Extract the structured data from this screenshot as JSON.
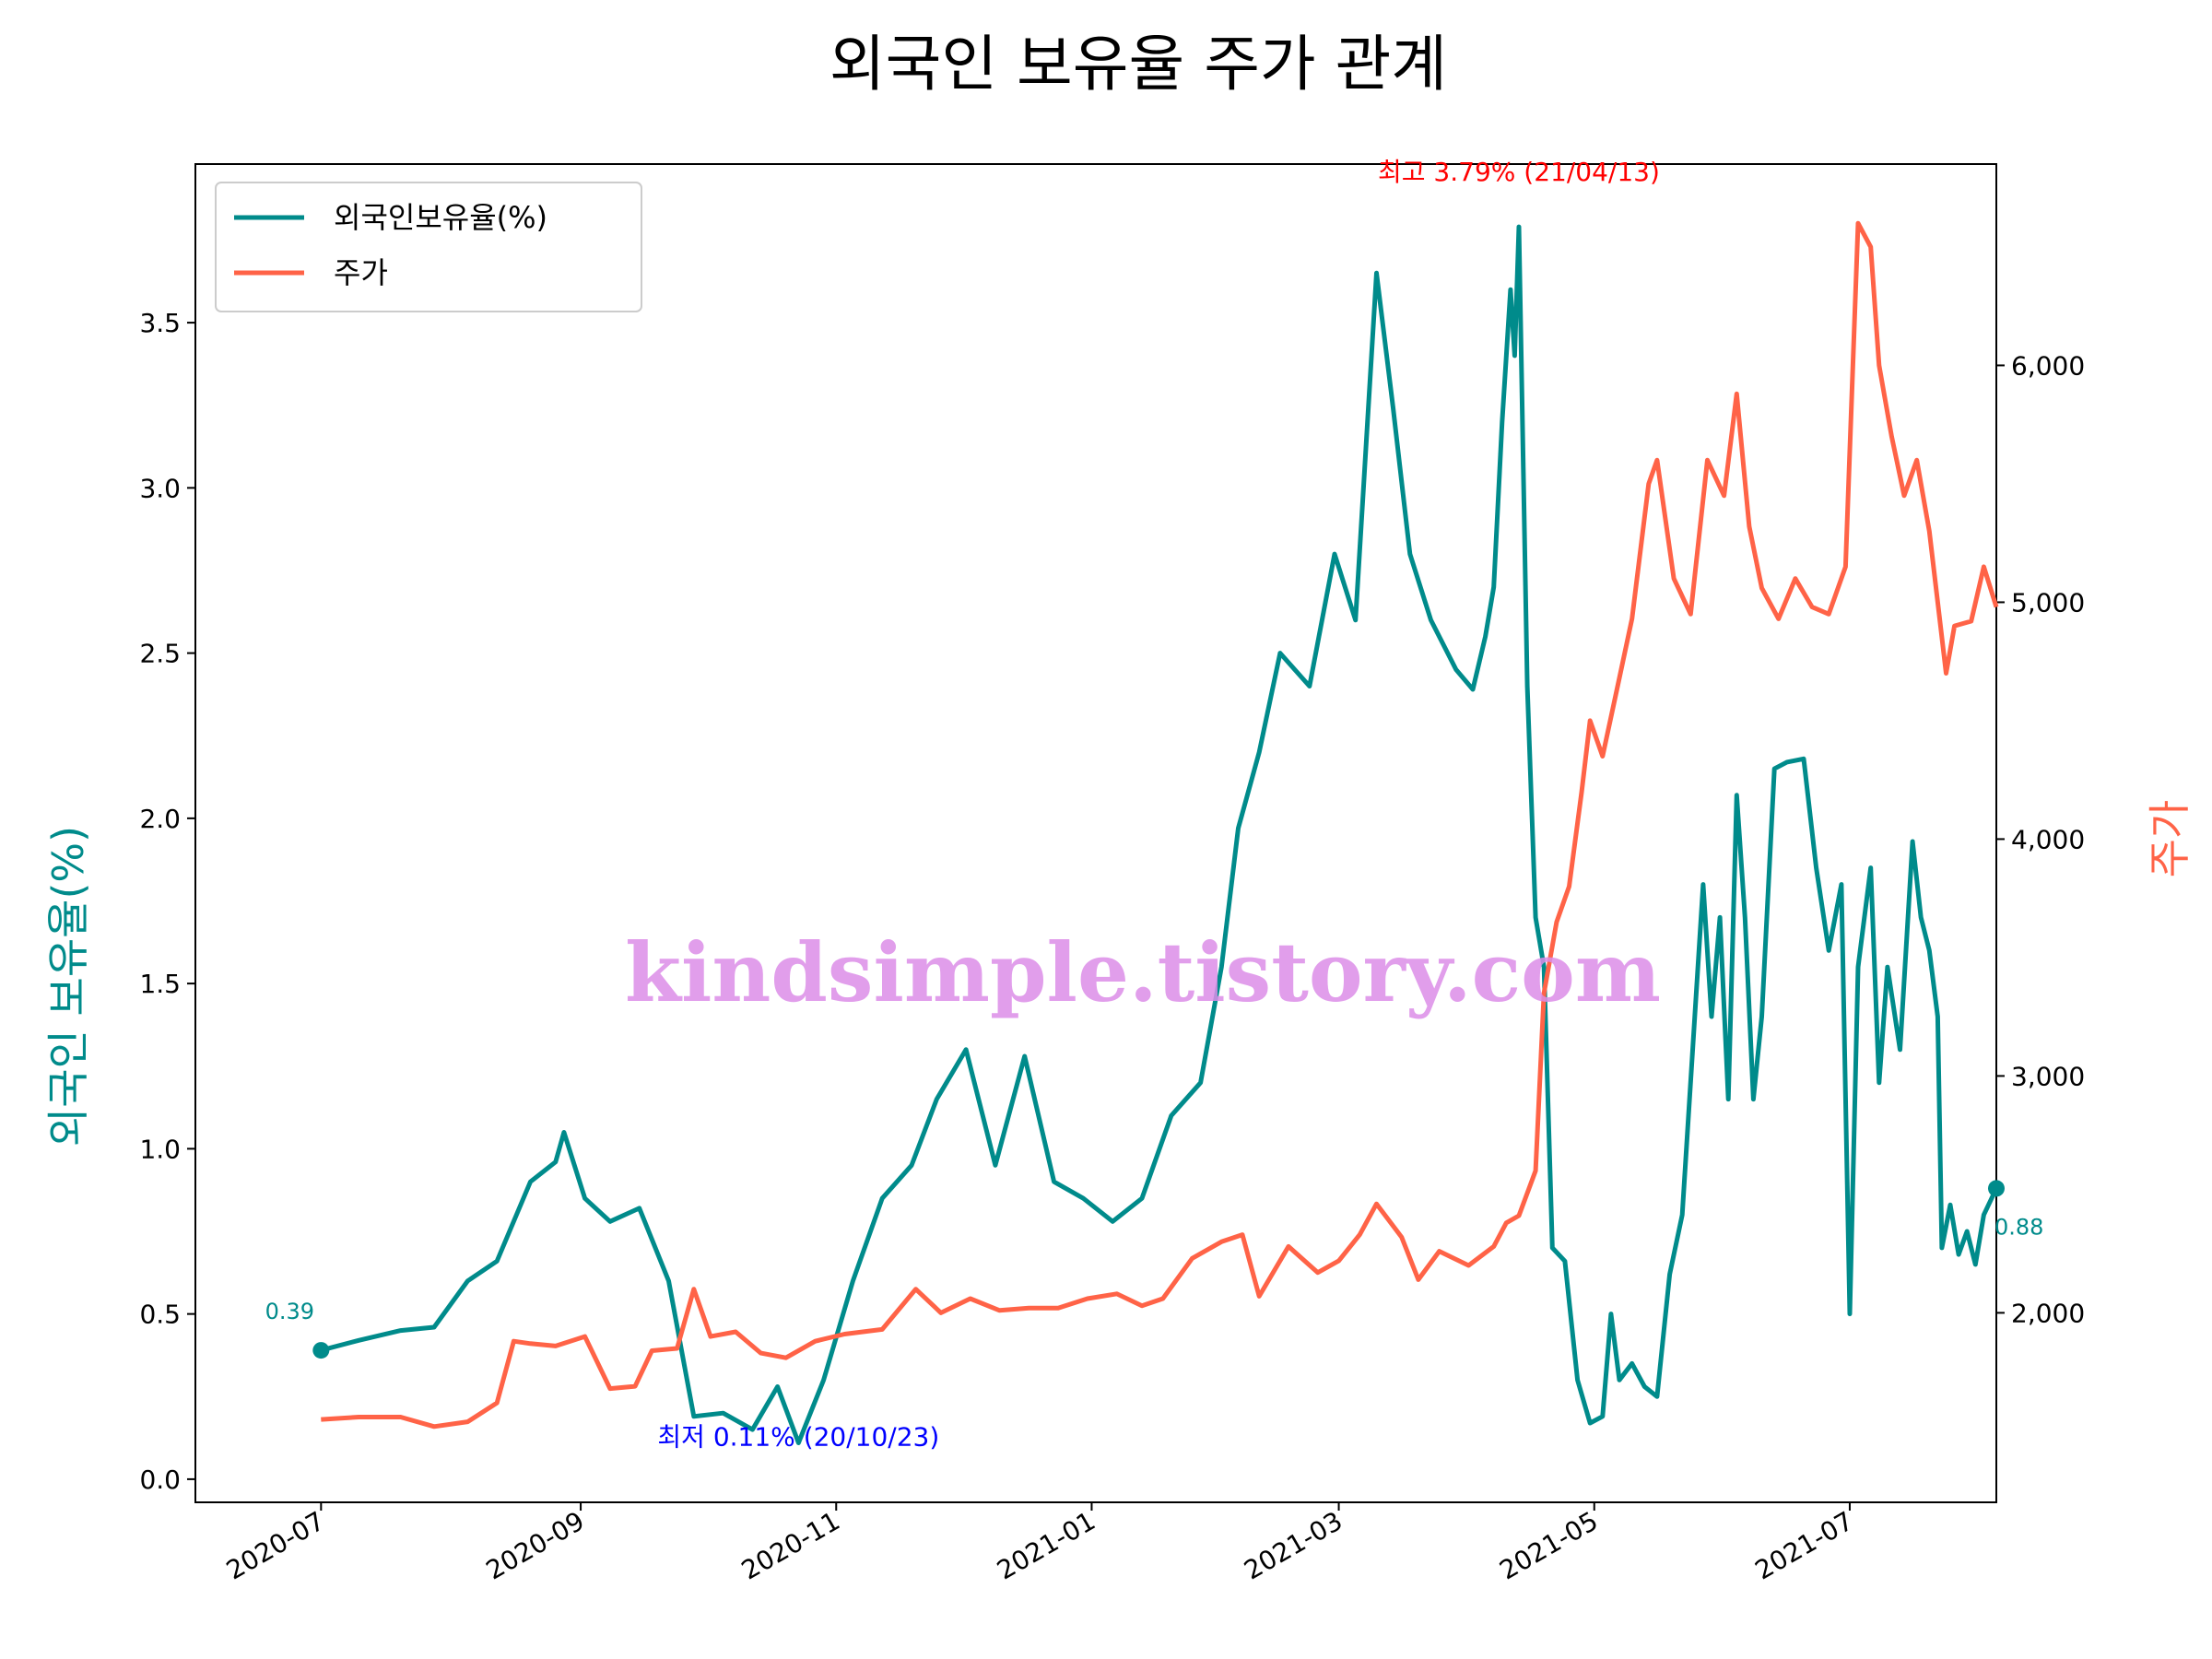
{
  "chart_data": {
    "type": "line",
    "title": "외국인 보유율 주가 관계",
    "ylabel": "외국인 보유율(%)",
    "ylabel_right": "주가",
    "x_range": [
      "2020-06-01",
      "2021-08-05"
    ],
    "xticks": [
      "2020-07",
      "2020-09",
      "2020-11",
      "2021-01",
      "2021-03",
      "2021-05",
      "2021-07"
    ],
    "ylim": [
      -0.07,
      3.98
    ],
    "yticks": [
      0.0,
      0.5,
      1.0,
      1.5,
      2.0,
      2.5,
      3.0,
      3.5
    ],
    "yticks_labels": [
      "0.0",
      "0.5",
      "1.0",
      "1.5",
      "2.0",
      "2.5",
      "3.0",
      "3.5"
    ],
    "ylim_right": [
      1200,
      6850
    ],
    "yticks_right": [
      2000,
      3000,
      4000,
      5000,
      6000
    ],
    "yticks_right_labels": [
      "2,000",
      "3,000",
      "4,000",
      "5,000",
      "6,000"
    ],
    "grid": false,
    "legend_position": "upper-left",
    "series": [
      {
        "name": "외국인보유율(%)",
        "axis": "left",
        "color": "#008b8b",
        "points": [
          [
            "2020-07-01",
            0.39
          ],
          [
            "2020-07-10",
            0.42
          ],
          [
            "2020-07-20",
            0.45
          ],
          [
            "2020-07-28",
            0.46
          ],
          [
            "2020-08-05",
            0.6
          ],
          [
            "2020-08-12",
            0.66
          ],
          [
            "2020-08-20",
            0.9
          ],
          [
            "2020-08-26",
            0.96
          ],
          [
            "2020-08-28",
            1.05
          ],
          [
            "2020-09-02",
            0.85
          ],
          [
            "2020-09-08",
            0.78
          ],
          [
            "2020-09-15",
            0.82
          ],
          [
            "2020-09-22",
            0.6
          ],
          [
            "2020-09-28",
            0.19
          ],
          [
            "2020-10-05",
            0.2
          ],
          [
            "2020-10-12",
            0.15
          ],
          [
            "2020-10-18",
            0.28
          ],
          [
            "2020-10-23",
            0.11
          ],
          [
            "2020-10-29",
            0.3
          ],
          [
            "2020-11-05",
            0.6
          ],
          [
            "2020-11-12",
            0.85
          ],
          [
            "2020-11-19",
            0.95
          ],
          [
            "2020-11-25",
            1.15
          ],
          [
            "2020-12-02",
            1.3
          ],
          [
            "2020-12-09",
            0.95
          ],
          [
            "2020-12-16",
            1.28
          ],
          [
            "2020-12-23",
            0.9
          ],
          [
            "2020-12-30",
            0.85
          ],
          [
            "2021-01-06",
            0.78
          ],
          [
            "2021-01-13",
            0.85
          ],
          [
            "2021-01-20",
            1.1
          ],
          [
            "2021-01-27",
            1.2
          ],
          [
            "2021-02-01",
            1.55
          ],
          [
            "2021-02-05",
            1.97
          ],
          [
            "2021-02-10",
            2.2
          ],
          [
            "2021-02-15",
            2.5
          ],
          [
            "2021-02-22",
            2.4
          ],
          [
            "2021-02-28",
            2.8
          ],
          [
            "2021-03-05",
            2.6
          ],
          [
            "2021-03-10",
            3.65
          ],
          [
            "2021-03-14",
            3.24
          ],
          [
            "2021-03-18",
            2.8
          ],
          [
            "2021-03-23",
            2.6
          ],
          [
            "2021-03-29",
            2.45
          ],
          [
            "2021-04-02",
            2.39
          ],
          [
            "2021-04-05",
            2.55
          ],
          [
            "2021-04-07",
            2.7
          ],
          [
            "2021-04-09",
            3.2
          ],
          [
            "2021-04-11",
            3.6
          ],
          [
            "2021-04-12",
            3.4
          ],
          [
            "2021-04-13",
            3.79
          ],
          [
            "2021-04-15",
            2.4
          ],
          [
            "2021-04-17",
            1.7
          ],
          [
            "2021-04-19",
            1.55
          ],
          [
            "2021-04-21",
            0.7
          ],
          [
            "2021-04-24",
            0.66
          ],
          [
            "2021-04-27",
            0.3
          ],
          [
            "2021-04-30",
            0.17
          ],
          [
            "2021-05-03",
            0.19
          ],
          [
            "2021-05-05",
            0.5
          ],
          [
            "2021-05-07",
            0.3
          ],
          [
            "2021-05-10",
            0.35
          ],
          [
            "2021-05-13",
            0.28
          ],
          [
            "2021-05-16",
            0.25
          ],
          [
            "2021-05-19",
            0.62
          ],
          [
            "2021-05-22",
            0.8
          ],
          [
            "2021-05-25",
            1.4
          ],
          [
            "2021-05-27",
            1.8
          ],
          [
            "2021-05-29",
            1.4
          ],
          [
            "2021-05-31",
            1.7
          ],
          [
            "2021-06-02",
            1.15
          ],
          [
            "2021-06-04",
            2.07
          ],
          [
            "2021-06-06",
            1.7
          ],
          [
            "2021-06-08",
            1.15
          ],
          [
            "2021-06-10",
            1.4
          ],
          [
            "2021-06-13",
            2.15
          ],
          [
            "2021-06-16",
            2.17
          ],
          [
            "2021-06-20",
            2.18
          ],
          [
            "2021-06-23",
            1.85
          ],
          [
            "2021-06-26",
            1.6
          ],
          [
            "2021-06-29",
            1.8
          ],
          [
            "2021-07-01",
            0.5
          ],
          [
            "2021-07-03",
            1.55
          ],
          [
            "2021-07-06",
            1.85
          ],
          [
            "2021-07-08",
            1.2
          ],
          [
            "2021-07-10",
            1.55
          ],
          [
            "2021-07-13",
            1.3
          ],
          [
            "2021-07-16",
            1.93
          ],
          [
            "2021-07-18",
            1.7
          ],
          [
            "2021-07-20",
            1.6
          ],
          [
            "2021-07-22",
            1.4
          ],
          [
            "2021-07-23",
            0.7
          ],
          [
            "2021-07-25",
            0.83
          ],
          [
            "2021-07-27",
            0.68
          ],
          [
            "2021-07-29",
            0.75
          ],
          [
            "2021-07-31",
            0.65
          ],
          [
            "2021-08-02",
            0.8
          ],
          [
            "2021-08-05",
            0.88
          ]
        ]
      },
      {
        "name": "주가",
        "axis": "right",
        "color": "#ff6347",
        "points": [
          [
            "2020-07-01",
            1550
          ],
          [
            "2020-07-10",
            1560
          ],
          [
            "2020-07-20",
            1560
          ],
          [
            "2020-07-28",
            1520
          ],
          [
            "2020-08-05",
            1540
          ],
          [
            "2020-08-12",
            1620
          ],
          [
            "2020-08-16",
            1880
          ],
          [
            "2020-08-20",
            1870
          ],
          [
            "2020-08-26",
            1860
          ],
          [
            "2020-09-02",
            1900
          ],
          [
            "2020-09-08",
            1680
          ],
          [
            "2020-09-14",
            1690
          ],
          [
            "2020-09-18",
            1840
          ],
          [
            "2020-09-24",
            1850
          ],
          [
            "2020-09-28",
            2100
          ],
          [
            "2020-10-02",
            1900
          ],
          [
            "2020-10-08",
            1920
          ],
          [
            "2020-10-14",
            1830
          ],
          [
            "2020-10-20",
            1810
          ],
          [
            "2020-10-27",
            1880
          ],
          [
            "2020-11-03",
            1910
          ],
          [
            "2020-11-12",
            1930
          ],
          [
            "2020-11-20",
            2100
          ],
          [
            "2020-11-26",
            2000
          ],
          [
            "2020-12-03",
            2060
          ],
          [
            "2020-12-10",
            2010
          ],
          [
            "2020-12-17",
            2020
          ],
          [
            "2020-12-24",
            2020
          ],
          [
            "2020-12-31",
            2060
          ],
          [
            "2021-01-07",
            2080
          ],
          [
            "2021-01-13",
            2030
          ],
          [
            "2021-01-18",
            2060
          ],
          [
            "2021-01-25",
            2230
          ],
          [
            "2021-02-01",
            2300
          ],
          [
            "2021-02-06",
            2330
          ],
          [
            "2021-02-10",
            2070
          ],
          [
            "2021-02-17",
            2280
          ],
          [
            "2021-02-24",
            2170
          ],
          [
            "2021-03-01",
            2220
          ],
          [
            "2021-03-06",
            2330
          ],
          [
            "2021-03-10",
            2460
          ],
          [
            "2021-03-16",
            2320
          ],
          [
            "2021-03-20",
            2140
          ],
          [
            "2021-03-25",
            2260
          ],
          [
            "2021-04-01",
            2200
          ],
          [
            "2021-04-07",
            2280
          ],
          [
            "2021-04-10",
            2380
          ],
          [
            "2021-04-13",
            2410
          ],
          [
            "2021-04-17",
            2600
          ],
          [
            "2021-04-19",
            3350
          ],
          [
            "2021-04-22",
            3650
          ],
          [
            "2021-04-25",
            3800
          ],
          [
            "2021-04-28",
            4200
          ],
          [
            "2021-04-30",
            4500
          ],
          [
            "2021-05-03",
            4350
          ],
          [
            "2021-05-07",
            4680
          ],
          [
            "2021-05-10",
            4930
          ],
          [
            "2021-05-14",
            5500
          ],
          [
            "2021-05-16",
            5600
          ],
          [
            "2021-05-20",
            5100
          ],
          [
            "2021-05-24",
            4950
          ],
          [
            "2021-05-28",
            5600
          ],
          [
            "2021-06-01",
            5450
          ],
          [
            "2021-06-04",
            5880
          ],
          [
            "2021-06-07",
            5320
          ],
          [
            "2021-06-10",
            5060
          ],
          [
            "2021-06-14",
            4930
          ],
          [
            "2021-06-18",
            5100
          ],
          [
            "2021-06-22",
            4980
          ],
          [
            "2021-06-26",
            4950
          ],
          [
            "2021-06-30",
            5150
          ],
          [
            "2021-07-03",
            6600
          ],
          [
            "2021-07-06",
            6500
          ],
          [
            "2021-07-08",
            6000
          ],
          [
            "2021-07-11",
            5700
          ],
          [
            "2021-07-14",
            5450
          ],
          [
            "2021-07-17",
            5600
          ],
          [
            "2021-07-20",
            5300
          ],
          [
            "2021-07-24",
            4700
          ],
          [
            "2021-07-26",
            4900
          ],
          [
            "2021-07-30",
            4920
          ],
          [
            "2021-08-02",
            5150
          ],
          [
            "2021-08-05",
            4980
          ]
        ]
      }
    ],
    "annotations": [
      {
        "text": "최고  3.79% (21/04/13)",
        "date": "2021-04-13",
        "value": 3.79,
        "axis": "left",
        "color": "#ff0000"
      },
      {
        "text": "최저  0.11% (20/10/23)",
        "date": "2020-10-23",
        "value": 0.11,
        "axis": "left",
        "color": "#0000ff"
      },
      {
        "text": "0.39",
        "date": "2020-07-01",
        "value": 0.39,
        "axis": "left",
        "color": "#008b8b"
      },
      {
        "text": "0.88",
        "date": "2021-08-05",
        "value": 0.88,
        "axis": "left",
        "color": "#008b8b"
      }
    ],
    "watermark": "kindsimple.tistory.com"
  }
}
